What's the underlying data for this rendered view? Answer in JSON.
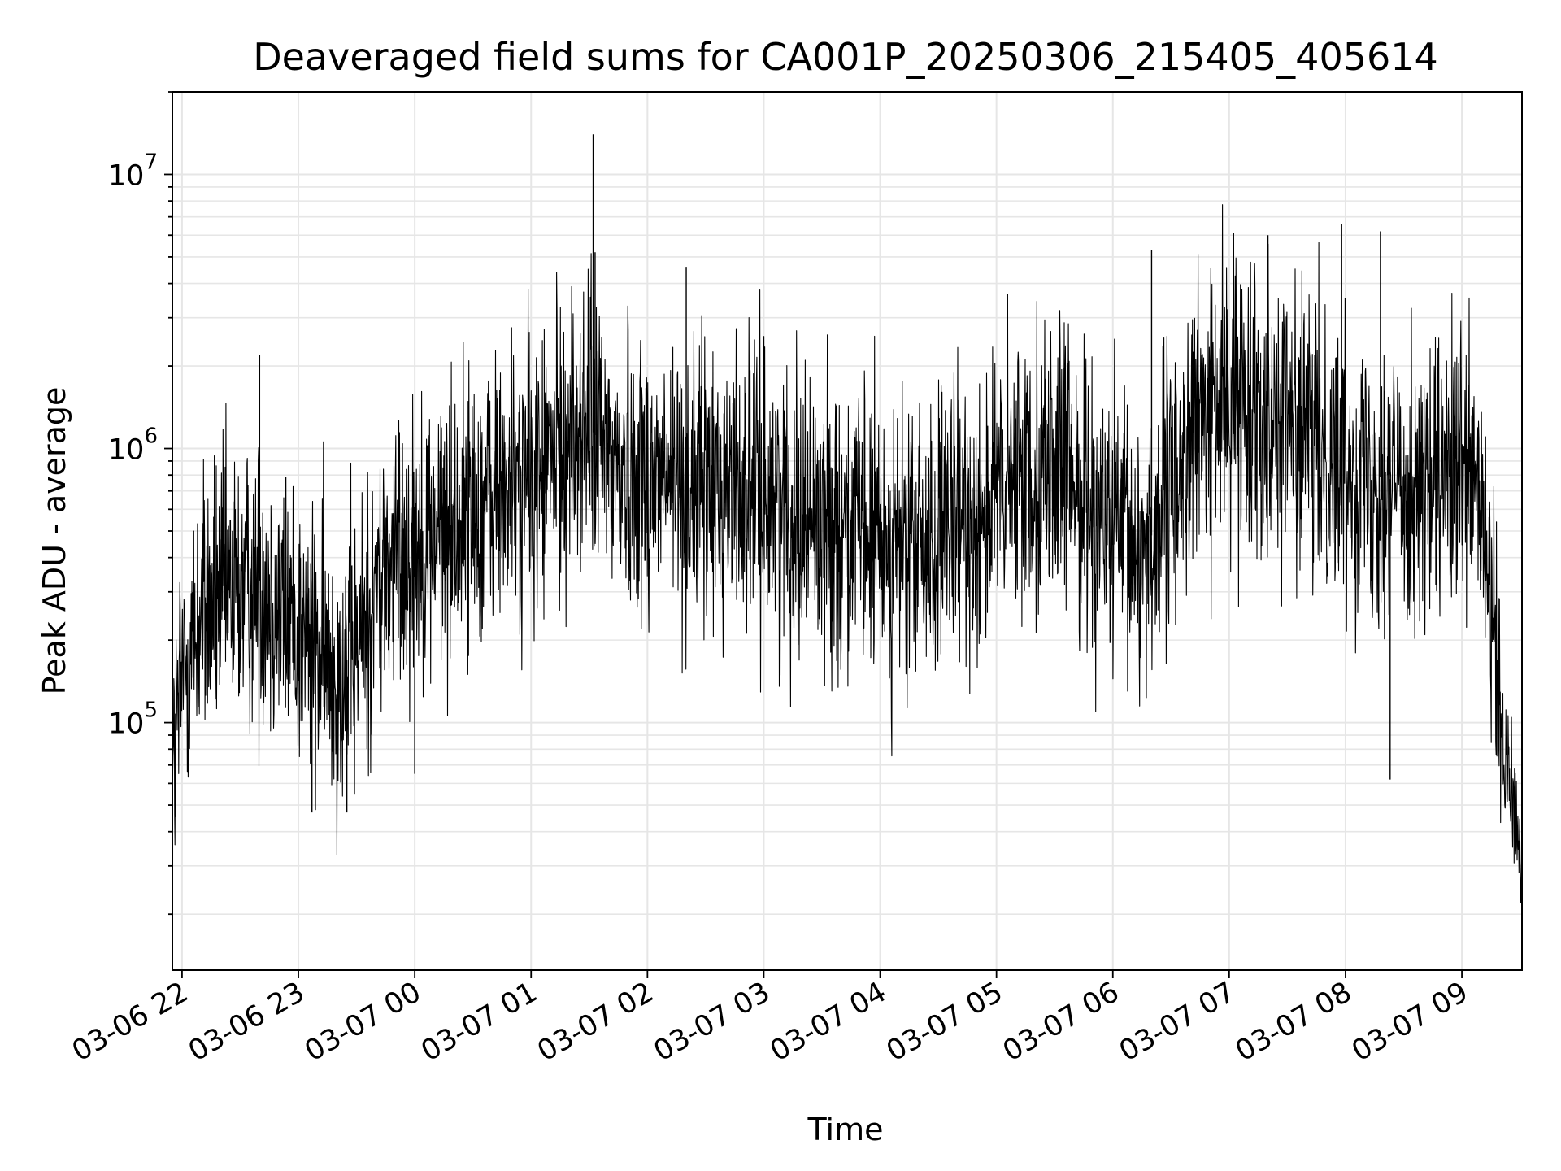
{
  "chart_data": {
    "type": "line",
    "title": "Deaveraged field sums for CA001P_20250306_215405_405614",
    "xlabel": "Time",
    "ylabel": "Peak ADU - average",
    "yscale": "log",
    "ylim": [
      12500,
      20000000
    ],
    "xlim": [
      "2025-03-06 21:55",
      "2025-03-07 09:31"
    ],
    "grid": true,
    "x_ticks": [
      "03-06 22",
      "03-06 23",
      "03-07 00",
      "03-07 01",
      "03-07 02",
      "03-07 03",
      "03-07 04",
      "03-07 05",
      "03-07 06",
      "03-07 07",
      "03-07 08",
      "03-07 09"
    ],
    "y_ticks": [
      {
        "base": "10",
        "exp": "5",
        "value": 100000
      },
      {
        "base": "10",
        "exp": "6",
        "value": 1000000
      },
      {
        "base": "10",
        "exp": "7",
        "value": 10000000
      }
    ],
    "line_color": "#000000",
    "grid_color": "#e6e6e6",
    "series": [
      {
        "x": [
          "2025-03-06 21:55",
          "2025-03-06 22:00",
          "2025-03-06 22:10",
          "2025-03-06 22:20",
          "2025-03-06 22:30",
          "2025-03-06 22:40",
          "2025-03-06 22:50",
          "2025-03-06 23:00",
          "2025-03-06 23:10",
          "2025-03-06 23:20",
          "2025-03-06 23:30",
          "2025-03-06 23:40",
          "2025-03-06 23:50",
          "2025-03-07 00:00",
          "2025-03-07 00:15",
          "2025-03-07 00:30",
          "2025-03-07 00:45",
          "2025-03-07 01:00",
          "2025-03-07 01:15",
          "2025-03-07 01:30",
          "2025-03-07 01:45",
          "2025-03-07 02:00",
          "2025-03-07 02:15",
          "2025-03-07 02:30",
          "2025-03-07 02:45",
          "2025-03-07 03:00",
          "2025-03-07 03:15",
          "2025-03-07 03:30",
          "2025-03-07 03:45",
          "2025-03-07 04:00",
          "2025-03-07 04:15",
          "2025-03-07 04:30",
          "2025-03-07 04:45",
          "2025-03-07 05:00",
          "2025-03-07 05:15",
          "2025-03-07 05:30",
          "2025-03-07 05:45",
          "2025-03-07 06:00",
          "2025-03-07 06:15",
          "2025-03-07 06:30",
          "2025-03-07 06:45",
          "2025-03-07 07:00",
          "2025-03-07 07:15",
          "2025-03-07 07:30",
          "2025-03-07 07:45",
          "2025-03-07 08:00",
          "2025-03-07 08:15",
          "2025-03-07 08:30",
          "2025-03-07 08:45",
          "2025-03-07 09:00",
          "2025-03-07 09:10",
          "2025-03-07 09:20",
          "2025-03-07 09:31"
        ],
        "y": [
          60000,
          150000,
          250000,
          280000,
          300000,
          330000,
          280000,
          220000,
          170000,
          160000,
          180000,
          300000,
          400000,
          450000,
          500000,
          600000,
          700000,
          750000,
          1000000,
          1200000,
          850000,
          800000,
          750000,
          700000,
          750000,
          700000,
          600000,
          550000,
          500000,
          450000,
          420000,
          450000,
          550000,
          650000,
          800000,
          900000,
          700000,
          500000,
          400000,
          700000,
          1300000,
          1500000,
          1500000,
          1300000,
          1000000,
          900000,
          800000,
          750000,
          700000,
          800000,
          600000,
          100000,
          30000
        ]
      }
    ],
    "spikes": [
      {
        "x": "2025-03-07 01:32",
        "y": 14000000
      },
      {
        "x": "2025-03-07 01:33",
        "y": 5200000
      },
      {
        "x": "2025-03-07 02:20",
        "y": 4600000
      },
      {
        "x": "2025-03-07 06:20",
        "y": 5300000
      },
      {
        "x": "2025-03-07 07:20",
        "y": 6000000
      },
      {
        "x": "2025-03-07 07:58",
        "y": 6600000
      },
      {
        "x": "2025-03-07 08:18",
        "y": 6200000
      },
      {
        "x": "2025-03-06 22:40",
        "y": 2200000
      },
      {
        "x": "2025-03-07 00:00",
        "y": 65000
      },
      {
        "x": "2025-03-07 08:23",
        "y": 62000
      },
      {
        "x": "2025-03-06 23:07",
        "y": 47000
      },
      {
        "x": "2025-03-06 23:25",
        "y": 47000
      }
    ]
  }
}
